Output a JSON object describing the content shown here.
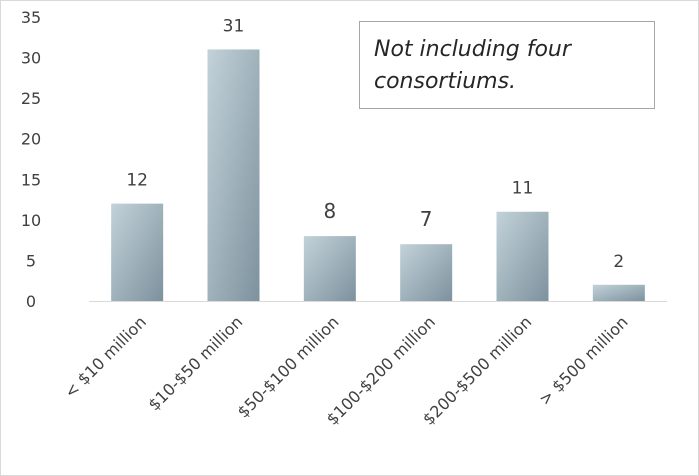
{
  "chart_data": {
    "type": "bar",
    "title": "",
    "xlabel": "",
    "ylabel": "",
    "categories": [
      "< $10 million",
      "$10-$50 million",
      "$50-$100 million",
      "$100-$200 million",
      "$200-$500 million",
      "> $500 million"
    ],
    "values": [
      12,
      31,
      8,
      7,
      11,
      2
    ],
    "ylim": [
      0,
      35
    ],
    "yticks": [
      0,
      5,
      10,
      15,
      20,
      25,
      30,
      35
    ],
    "grid": false,
    "legend": "none",
    "annotations": [
      "Not including four consortiums."
    ]
  },
  "note": {
    "text": "Not including four consortiums."
  },
  "colors": {
    "bar_light": "#c3d2d9",
    "bar_dark": "#7d929e",
    "text": "#404040",
    "axis": "#d9d9d9"
  }
}
